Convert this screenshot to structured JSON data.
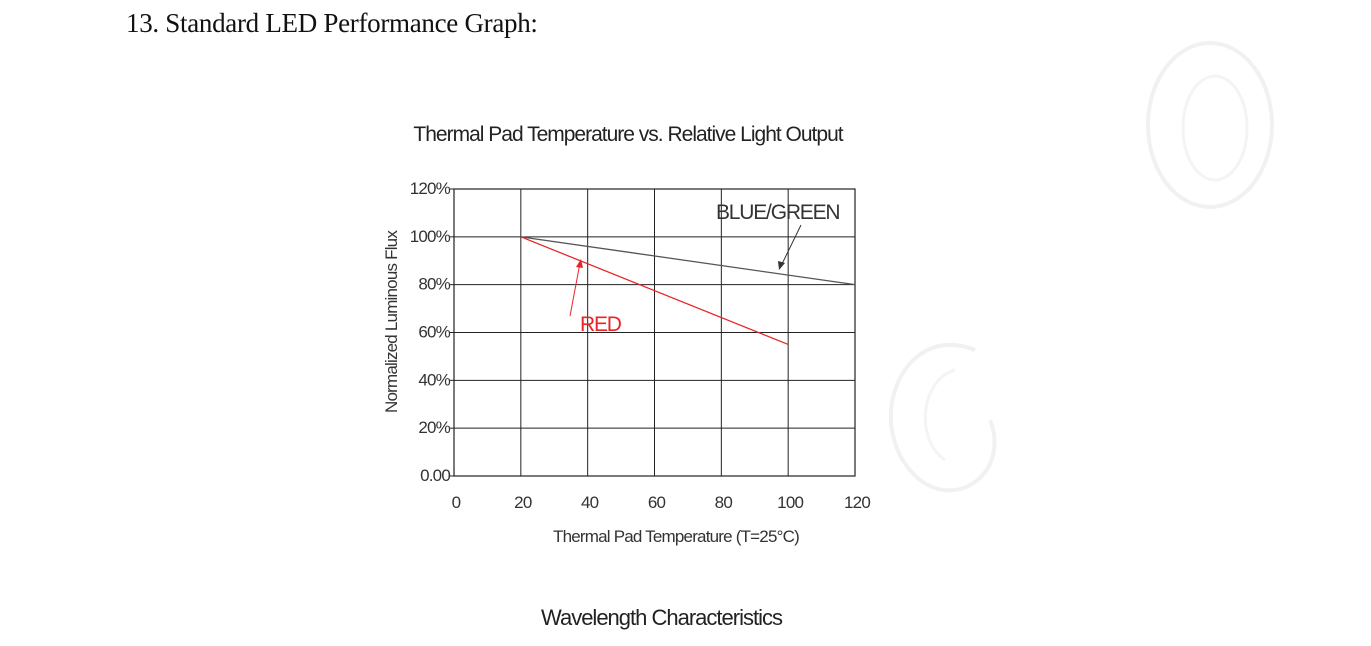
{
  "page": {
    "section_heading": "13. Standard LED Performance Graph:",
    "next_heading": "Wavelength Characteristics"
  },
  "chart_data": {
    "type": "line",
    "title": "Thermal Pad Temperature vs. Relative Light Output",
    "xlabel": "Thermal Pad Temperature (T=25°C)",
    "ylabel": "Normalized Luminous Flux",
    "xlim": [
      0,
      120
    ],
    "ylim": [
      0,
      120
    ],
    "x_ticks": [
      0,
      20,
      40,
      60,
      80,
      100,
      120
    ],
    "x_tick_labels": [
      "0",
      "20",
      "40",
      "60",
      "80",
      "100",
      "120"
    ],
    "y_ticks": [
      0,
      20,
      40,
      60,
      80,
      100,
      120
    ],
    "y_tick_labels": [
      "0.00",
      "20%",
      "40%",
      "60%",
      "80%",
      "100%",
      "120%"
    ],
    "grid": true,
    "series": [
      {
        "name": "BLUE/GREEN",
        "color": "#555555",
        "x": [
          20,
          120
        ],
        "y": [
          100,
          80
        ]
      },
      {
        "name": "RED",
        "color": "#e8262a",
        "x": [
          20,
          100
        ],
        "y": [
          100,
          55
        ]
      }
    ]
  }
}
